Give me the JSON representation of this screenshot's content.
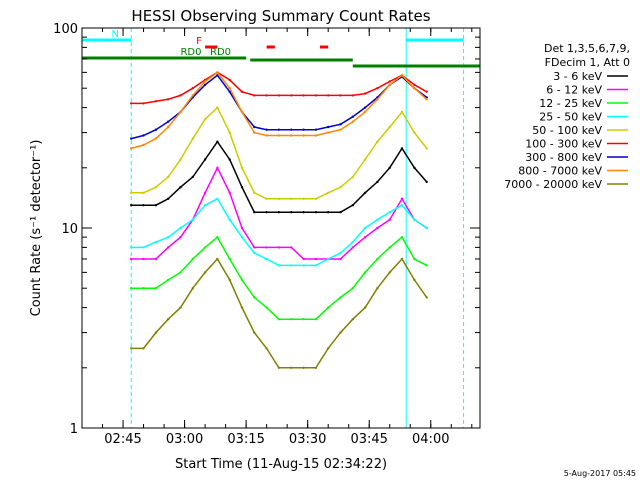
{
  "chart_data": {
    "type": "line",
    "title": "HESSI Observing Summary Count Rates",
    "xlabel": "Start Time (11-Aug-15 02:34:22)",
    "ylabel": "Count Rate (s⁻¹ detector⁻¹)",
    "yscale": "log",
    "xlim": [
      "02:35",
      "04:12"
    ],
    "ylim": [
      1,
      100
    ],
    "x_ticks": [
      "02:45",
      "03:00",
      "03:15",
      "03:30",
      "03:45",
      "04:00"
    ],
    "y_ticks": [
      "1",
      "10",
      "100"
    ],
    "grid": false,
    "legend_position": "right",
    "legend_header": [
      "Det 1,3,5,6,7,9,",
      "FDecim 1, Att 0"
    ],
    "x": [
      "02:47",
      "02:50",
      "02:53",
      "02:56",
      "02:59",
      "03:02",
      "03:05",
      "03:08",
      "03:11",
      "03:14",
      "03:17",
      "03:20",
      "03:23",
      "03:26",
      "03:29",
      "03:32",
      "03:35",
      "03:38",
      "03:41",
      "03:44",
      "03:47",
      "03:50",
      "03:53",
      "03:56",
      "03:59"
    ],
    "series": [
      {
        "name": "3 - 6 keV",
        "color": "#000000",
        "values": [
          13,
          13,
          13,
          14,
          16,
          18,
          22,
          27,
          22,
          16,
          12,
          12,
          12,
          12,
          12,
          12,
          12,
          12,
          13,
          15,
          17,
          20,
          25,
          20,
          17
        ]
      },
      {
        "name": "6 - 12 keV",
        "color": "#ff00ff",
        "values": [
          7,
          7,
          7,
          8,
          9,
          11,
          15,
          20,
          15,
          10,
          8,
          8,
          8,
          8,
          7,
          7,
          7,
          7,
          8,
          9,
          10,
          11,
          14,
          11,
          10
        ]
      },
      {
        "name": "12 - 25 keV",
        "color": "#00ff00",
        "values": [
          5,
          5,
          5,
          5.5,
          6,
          7,
          8,
          9,
          7,
          5.5,
          4.5,
          4,
          3.5,
          3.5,
          3.5,
          3.5,
          4,
          4.5,
          5,
          6,
          7,
          8,
          9,
          7,
          6.5
        ]
      },
      {
        "name": "25 - 50 keV",
        "color": "#00ffff",
        "values": [
          8,
          8,
          8.5,
          9,
          10,
          11,
          13,
          14,
          11,
          9,
          7.5,
          7,
          6.5,
          6.5,
          6.5,
          6.5,
          7,
          7.5,
          8.5,
          10,
          11,
          12,
          13,
          11,
          10
        ]
      },
      {
        "name": "50 - 100 keV",
        "color": "#cccc00",
        "values": [
          15,
          15,
          16,
          18,
          22,
          28,
          35,
          40,
          30,
          20,
          15,
          14,
          14,
          14,
          14,
          14,
          15,
          16,
          18,
          22,
          27,
          32,
          38,
          30,
          25
        ]
      },
      {
        "name": "100 - 300 keV",
        "color": "#ff0000",
        "values": [
          42,
          42,
          43,
          44,
          46,
          50,
          55,
          60,
          55,
          48,
          46,
          46,
          46,
          46,
          46,
          46,
          46,
          46,
          46,
          47,
          50,
          54,
          58,
          52,
          48
        ]
      },
      {
        "name": "300 - 800 keV",
        "color": "#0000cc",
        "values": [
          28,
          29,
          31,
          34,
          38,
          45,
          52,
          58,
          48,
          38,
          32,
          31,
          31,
          31,
          31,
          31,
          32,
          33,
          36,
          40,
          45,
          52,
          57,
          50,
          45
        ]
      },
      {
        "name": "800 - 7000 keV",
        "color": "#ff8800",
        "values": [
          25,
          26,
          28,
          32,
          38,
          46,
          54,
          60,
          50,
          38,
          30,
          29,
          29,
          29,
          29,
          29,
          30,
          31,
          34,
          38,
          44,
          52,
          58,
          50,
          44
        ]
      },
      {
        "name": "7000 - 20000 keV",
        "color": "#808000",
        "values": [
          2.5,
          2.5,
          3,
          3.5,
          4,
          5,
          6,
          7,
          5.5,
          4,
          3,
          2.5,
          2,
          2,
          2,
          2,
          2.5,
          3,
          3.5,
          4,
          5,
          6,
          7,
          5.5,
          4.5
        ]
      }
    ],
    "annotations": [
      {
        "label": "N",
        "color": "#00ffff",
        "type": "interval",
        "start": "02:35",
        "end": "02:47"
      },
      {
        "label": "",
        "color": "#00ffff",
        "type": "interval",
        "start": "03:54",
        "end": "04:08"
      },
      {
        "label": "RD0",
        "color": "#007f00",
        "type": "interval",
        "start": "02:35",
        "end": "03:15"
      },
      {
        "label": "RD0",
        "color": "#007f00",
        "type": "interval",
        "start": "02:53",
        "end": "03:15"
      },
      {
        "label": "",
        "color": "#007f00",
        "type": "interval",
        "start": "03:16",
        "end": "03:41"
      },
      {
        "label": "",
        "color": "#007f00",
        "type": "interval",
        "start": "03:41",
        "end": "04:12"
      },
      {
        "label": "F",
        "color": "#ff0000",
        "type": "flag",
        "start": "03:05",
        "end": "03:08"
      },
      {
        "label": "",
        "color": "#ff0000",
        "type": "flag",
        "start": "03:20",
        "end": "03:22"
      },
      {
        "label": "",
        "color": "#ff0000",
        "type": "flag",
        "start": "03:33",
        "end": "03:35"
      }
    ]
  },
  "footer_timestamp": "5-Aug-2017 05:45"
}
